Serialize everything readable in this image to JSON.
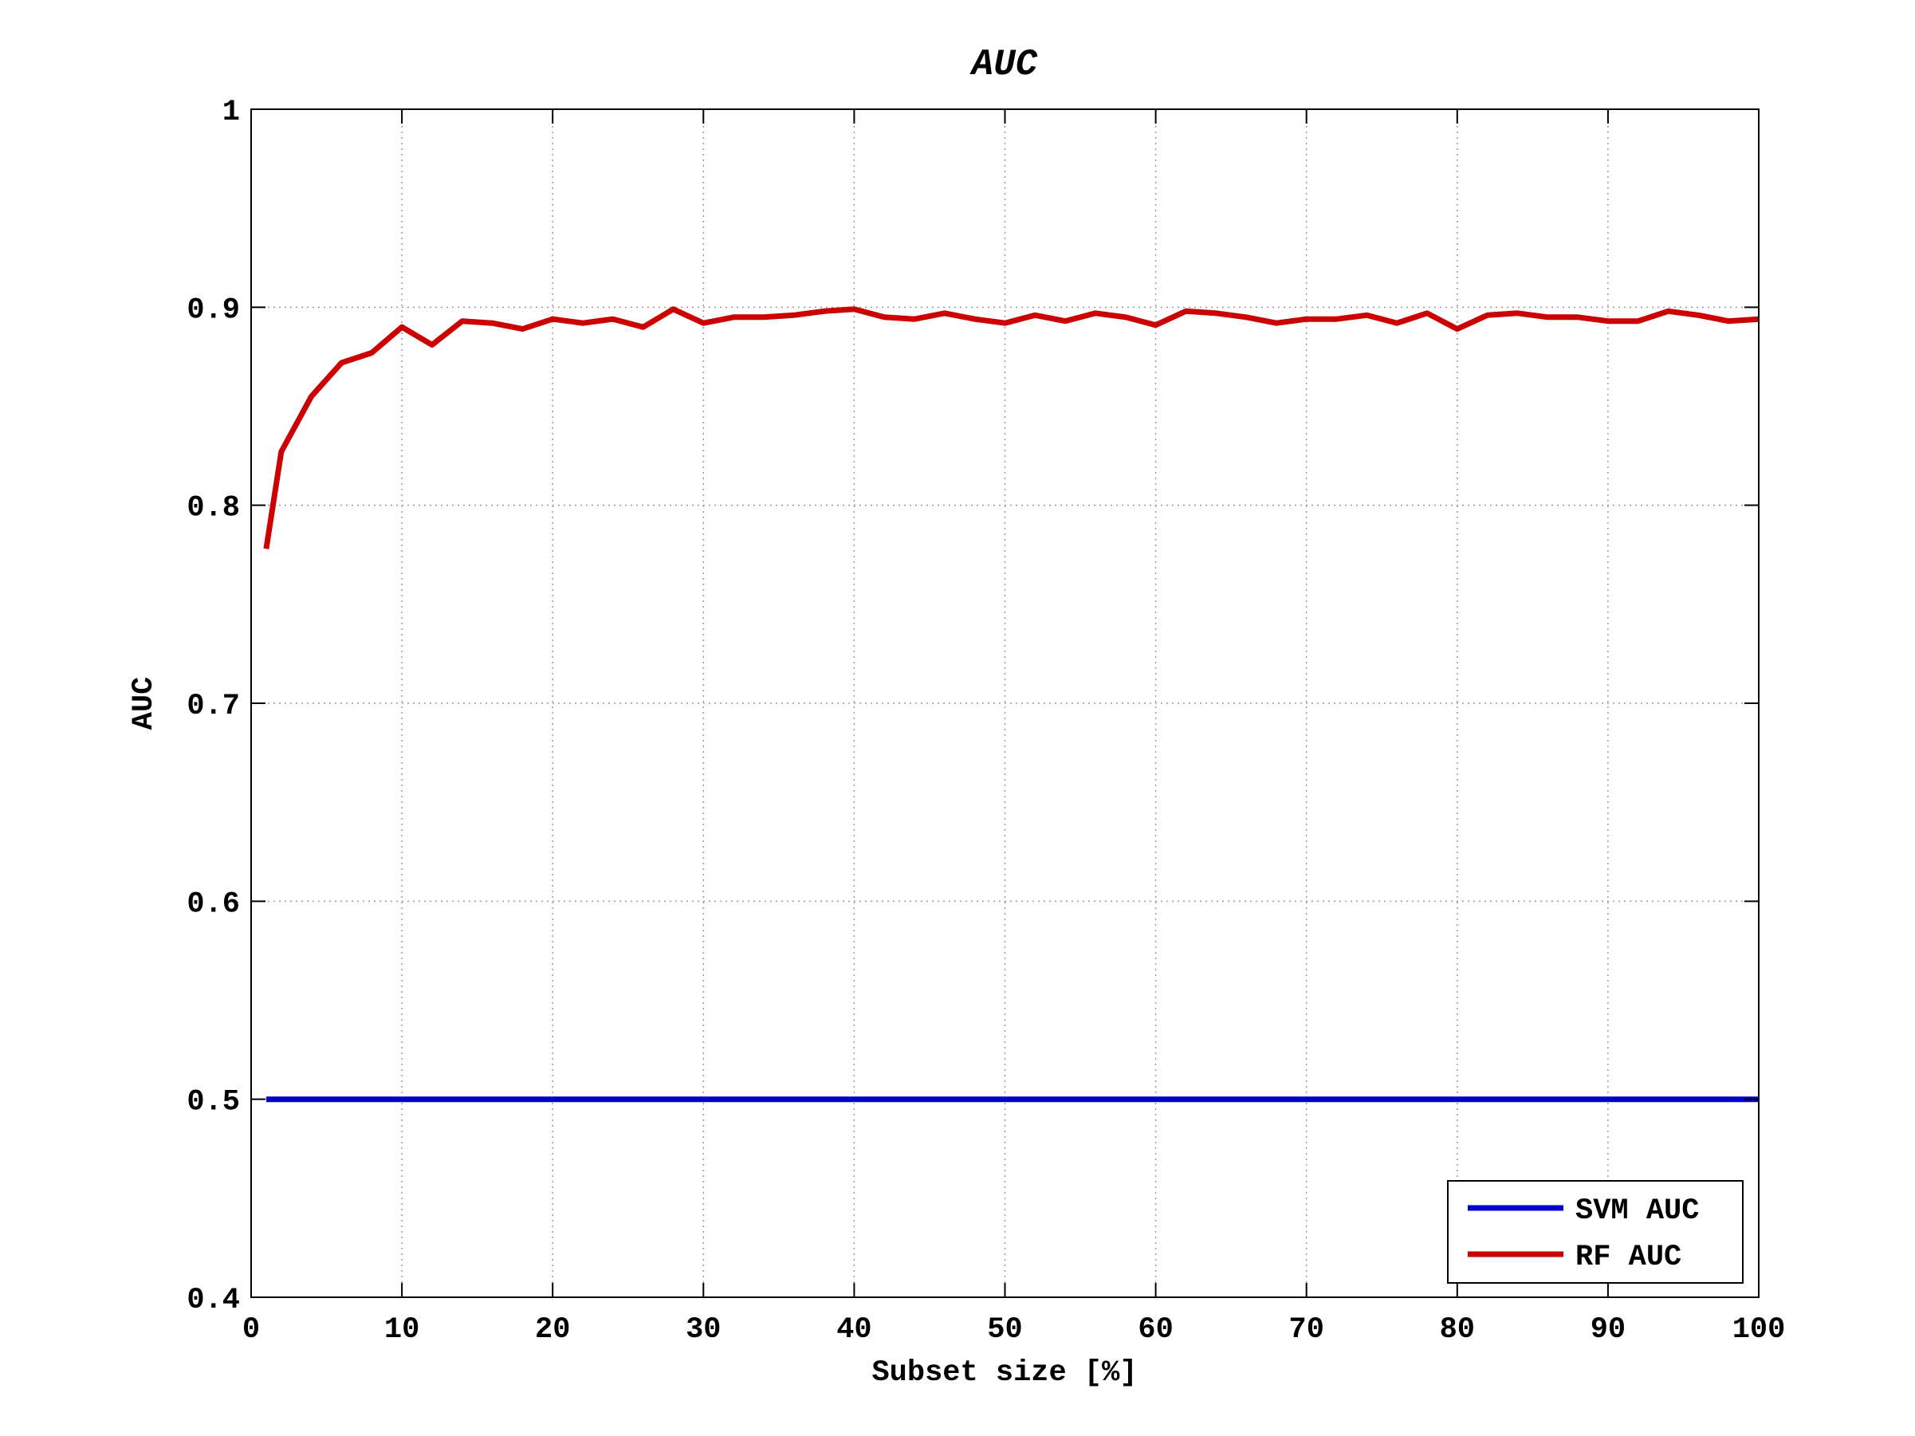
{
  "chart_data": {
    "type": "line",
    "title": "AUC",
    "xlabel": "Subset size [%]",
    "ylabel": "AUC",
    "xlim": [
      0,
      100
    ],
    "ylim": [
      0.4,
      1
    ],
    "xticks": [
      0,
      10,
      20,
      30,
      40,
      50,
      60,
      70,
      80,
      90,
      100
    ],
    "yticks": [
      0.4,
      0.5,
      0.6,
      0.7,
      0.8,
      0.9,
      1
    ],
    "xtick_labels": [
      "0",
      "10",
      "20",
      "30",
      "40",
      "50",
      "60",
      "70",
      "80",
      "90",
      "100"
    ],
    "ytick_labels": [
      "0.4",
      "0.5",
      "0.6",
      "0.7",
      "0.8",
      "0.9",
      "1"
    ],
    "grid": true,
    "legend_position": "bottom-right",
    "series": [
      {
        "name": "SVM AUC",
        "color": "#0000cc",
        "x": [
          1,
          100
        ],
        "y": [
          0.5,
          0.5
        ]
      },
      {
        "name": "RF AUC",
        "color": "#cc0000",
        "x": [
          1,
          2,
          4,
          6,
          8,
          10,
          12,
          14,
          16,
          18,
          20,
          22,
          24,
          26,
          28,
          30,
          32,
          34,
          36,
          38,
          40,
          42,
          44,
          46,
          48,
          50,
          52,
          54,
          56,
          58,
          60,
          62,
          64,
          66,
          68,
          70,
          72,
          74,
          76,
          78,
          80,
          82,
          84,
          86,
          88,
          90,
          92,
          94,
          96,
          98,
          100
        ],
        "y": [
          0.778,
          0.827,
          0.855,
          0.872,
          0.877,
          0.89,
          0.881,
          0.893,
          0.892,
          0.889,
          0.894,
          0.892,
          0.894,
          0.89,
          0.899,
          0.892,
          0.895,
          0.895,
          0.896,
          0.898,
          0.899,
          0.895,
          0.894,
          0.897,
          0.894,
          0.892,
          0.896,
          0.893,
          0.897,
          0.895,
          0.891,
          0.898,
          0.897,
          0.895,
          0.892,
          0.894,
          0.894,
          0.896,
          0.892,
          0.897,
          0.889,
          0.896,
          0.897,
          0.895,
          0.895,
          0.893,
          0.893,
          0.898,
          0.896,
          0.893,
          0.894
        ]
      }
    ]
  }
}
